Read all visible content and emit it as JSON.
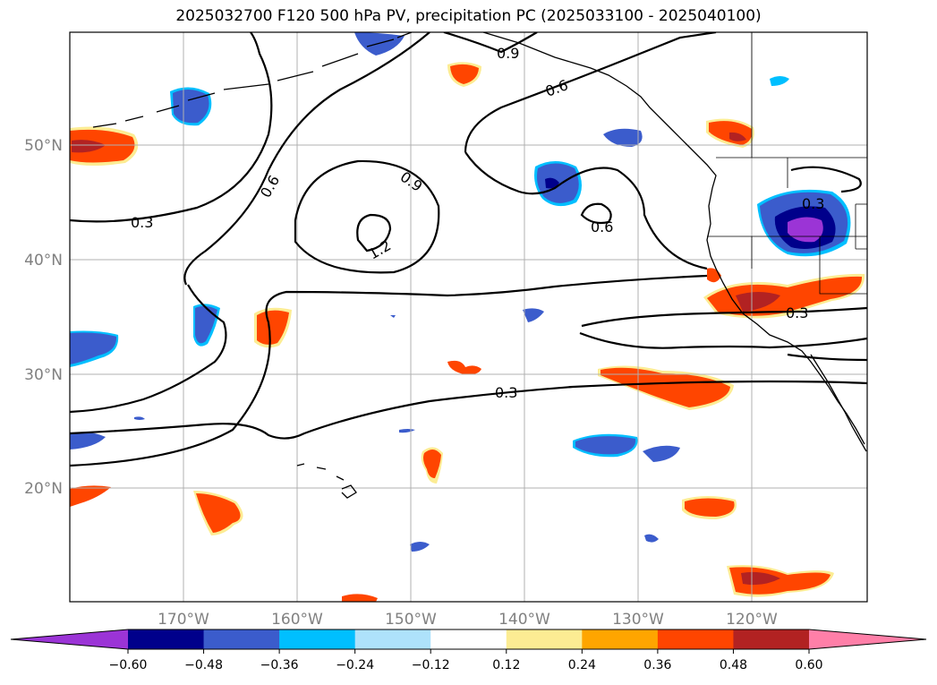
{
  "title": "2025032700 F120 500 hPa PV, precipitation PC (2025033100 - 2025040100)",
  "latitude_labels": [
    "50°N",
    "40°N",
    "30°N",
    "20°N"
  ],
  "longitude_labels": [
    "170°W",
    "160°W",
    "150°W",
    "140°W",
    "130°W",
    "120°W"
  ],
  "colorbar": {
    "ticks": [
      "−0.60",
      "−0.48",
      "−0.36",
      "−0.24",
      "−0.12",
      "0.12",
      "0.24",
      "0.36",
      "0.48",
      "0.60"
    ],
    "colors": [
      "#9b34d6",
      "#00008b",
      "#3b5ccc",
      "#00bfff",
      "#aee2fb",
      "#ffffff",
      "#fcec93",
      "#ffa500",
      "#ff4500",
      "#b22222",
      "#ff7fa8"
    ]
  },
  "contour_labels": [
    "0.9",
    "0.6",
    "0.6",
    "0.9",
    "0.3",
    "1.2",
    "0.6",
    "0.3",
    "0.3",
    "0.3"
  ],
  "precip_colors": {
    "orange": "#ff4500",
    "darkred": "#b22222",
    "yellow": "#fcec93",
    "blue": "#3b5ccc",
    "cyan": "#00bfff",
    "navy": "#00008b",
    "purple": "#9b34d6"
  }
}
